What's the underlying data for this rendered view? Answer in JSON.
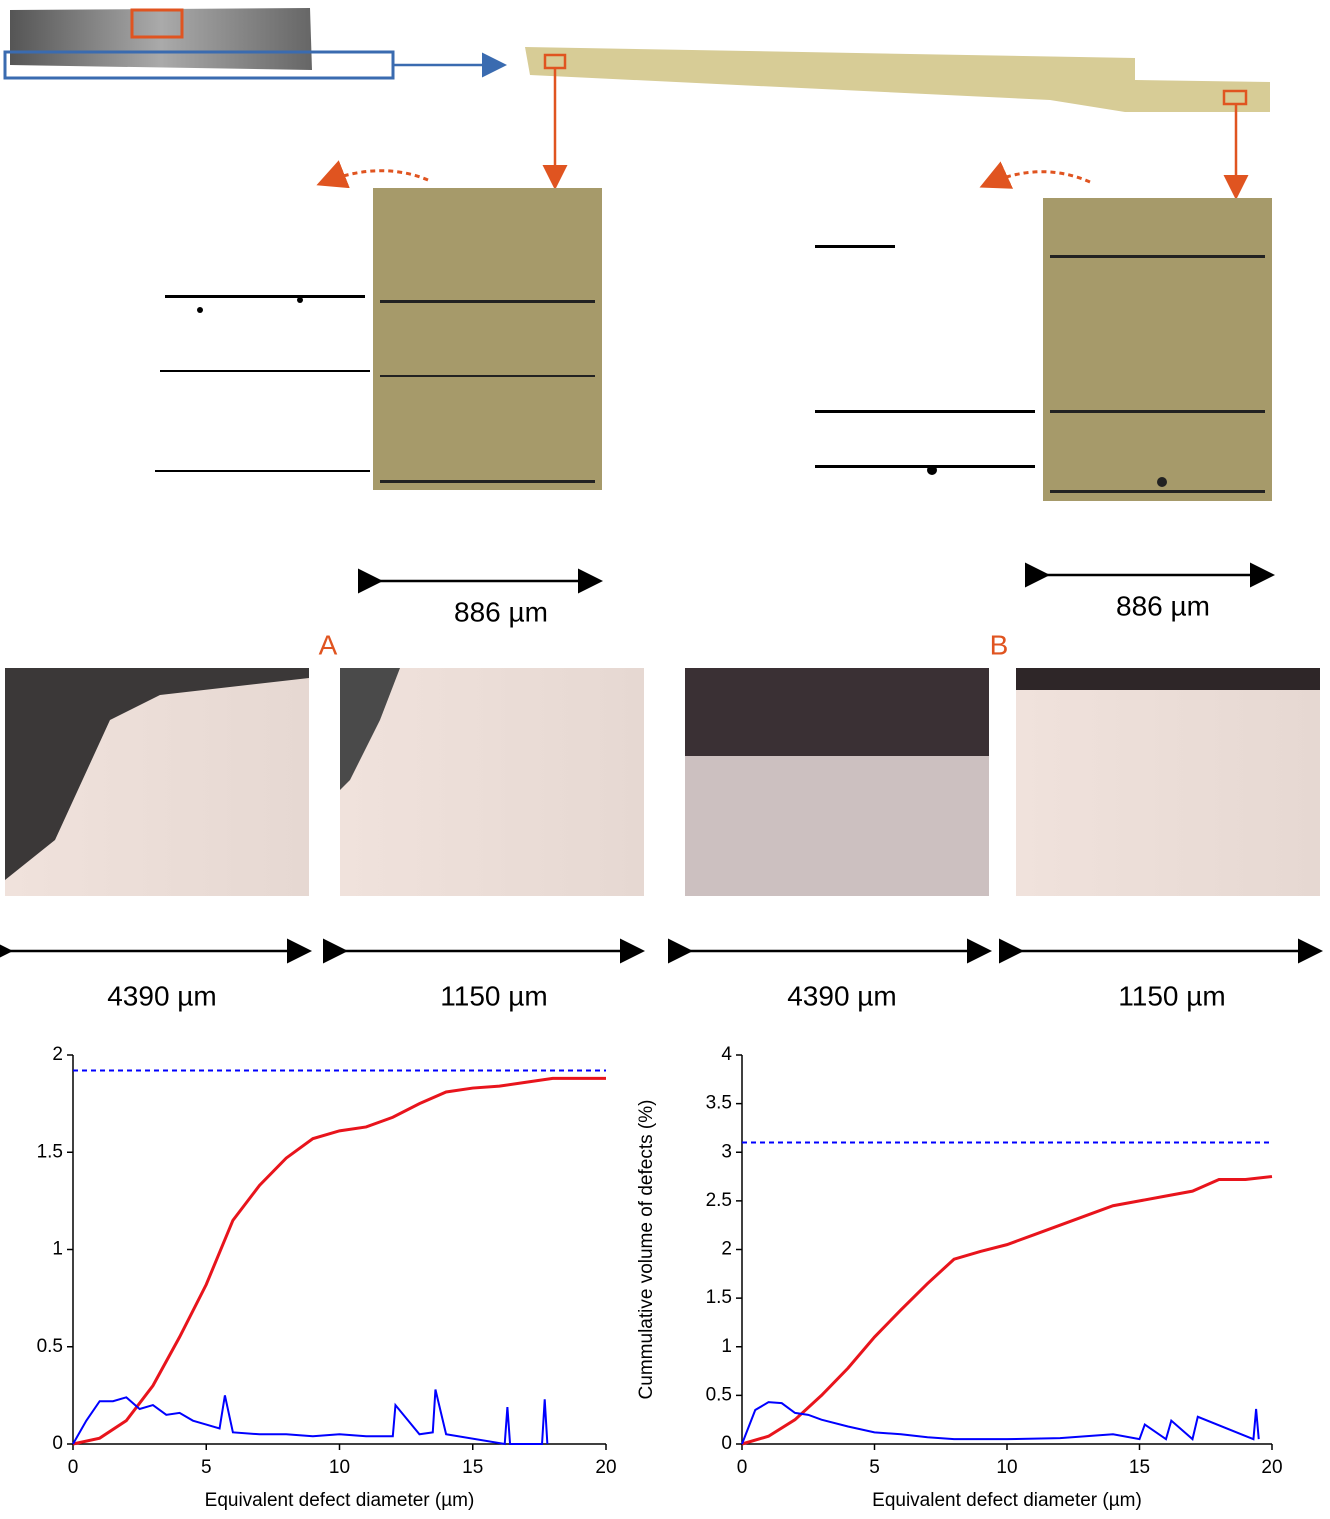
{
  "labels": {
    "scale_top_a": "886 µm",
    "scale_top_b": "886 µm",
    "panel_a": "A",
    "panel_b": "B",
    "scale_a1": "4390 µm",
    "scale_a2": "1150 µm",
    "scale_b1": "4390 µm",
    "scale_b2": "1150 µm"
  },
  "chart_data": [
    {
      "type": "line",
      "xlabel": "Equivalent defect diameter (µm)",
      "xlim": [
        0,
        20
      ],
      "xticks": [
        0,
        5,
        10,
        15,
        20
      ],
      "ylim": [
        0,
        2
      ],
      "yticks": [
        0,
        0.5,
        1,
        1.5,
        2
      ],
      "hline": {
        "value": 1.92,
        "color": "#0000ff"
      },
      "series": [
        {
          "color": "#e8141c",
          "x": [
            0,
            1,
            2,
            3,
            4,
            5,
            6,
            7,
            8,
            9,
            10,
            11,
            12,
            13,
            14,
            15,
            16,
            17,
            18,
            20
          ],
          "values": [
            0,
            0.03,
            0.12,
            0.3,
            0.55,
            0.82,
            1.15,
            1.33,
            1.47,
            1.57,
            1.61,
            1.63,
            1.68,
            1.75,
            1.81,
            1.83,
            1.84,
            1.86,
            1.88,
            1.88
          ]
        },
        {
          "color": "#0000ff",
          "x": [
            0,
            0.5,
            1,
            1.5,
            2,
            2.5,
            3,
            3.5,
            4,
            4.5,
            5,
            5.5,
            5.7,
            6,
            7,
            8,
            9,
            10,
            11,
            12,
            12.1,
            13,
            13.5,
            13.6,
            14,
            16.2,
            16.3,
            16.4,
            17.6,
            17.7,
            17.8
          ],
          "values": [
            0,
            0.12,
            0.22,
            0.22,
            0.24,
            0.18,
            0.2,
            0.15,
            0.16,
            0.12,
            0.1,
            0.08,
            0.25,
            0.06,
            0.05,
            0.05,
            0.04,
            0.05,
            0.04,
            0.04,
            0.2,
            0.05,
            0.06,
            0.28,
            0.05,
            0,
            0.19,
            0,
            0,
            0.23,
            0
          ]
        }
      ]
    },
    {
      "type": "line",
      "xlabel": "Equivalent defect diameter (µm)",
      "ylabel": "Cummulative volume of defects (%)",
      "xlim": [
        0,
        20
      ],
      "xticks": [
        0,
        5,
        10,
        15,
        20
      ],
      "ylim": [
        0,
        4
      ],
      "yticks": [
        0,
        0.5,
        1,
        1.5,
        2,
        2.5,
        3,
        3.5,
        4
      ],
      "hline": {
        "value": 3.1,
        "color": "#0000ff"
      },
      "series": [
        {
          "color": "#e8141c",
          "x": [
            0,
            1,
            2,
            3,
            4,
            5,
            6,
            7,
            8,
            9,
            10,
            11,
            12,
            13,
            14,
            15,
            16,
            17,
            18,
            19,
            20
          ],
          "values": [
            0,
            0.08,
            0.25,
            0.5,
            0.78,
            1.1,
            1.38,
            1.65,
            1.9,
            1.98,
            2.05,
            2.15,
            2.25,
            2.35,
            2.45,
            2.5,
            2.55,
            2.6,
            2.72,
            2.72,
            2.75
          ]
        },
        {
          "color": "#0000ff",
          "x": [
            0,
            0.5,
            1,
            1.5,
            2,
            2.5,
            3,
            4,
            5,
            6,
            7,
            8,
            9,
            10,
            12,
            14,
            15,
            15.2,
            16,
            16.2,
            17,
            17.2,
            19.3,
            19.4,
            19.5
          ],
          "values": [
            0,
            0.35,
            0.43,
            0.42,
            0.32,
            0.3,
            0.25,
            0.18,
            0.12,
            0.1,
            0.07,
            0.05,
            0.05,
            0.05,
            0.06,
            0.1,
            0.05,
            0.2,
            0.05,
            0.24,
            0.05,
            0.28,
            0.05,
            0.36,
            0.05
          ]
        }
      ]
    }
  ]
}
